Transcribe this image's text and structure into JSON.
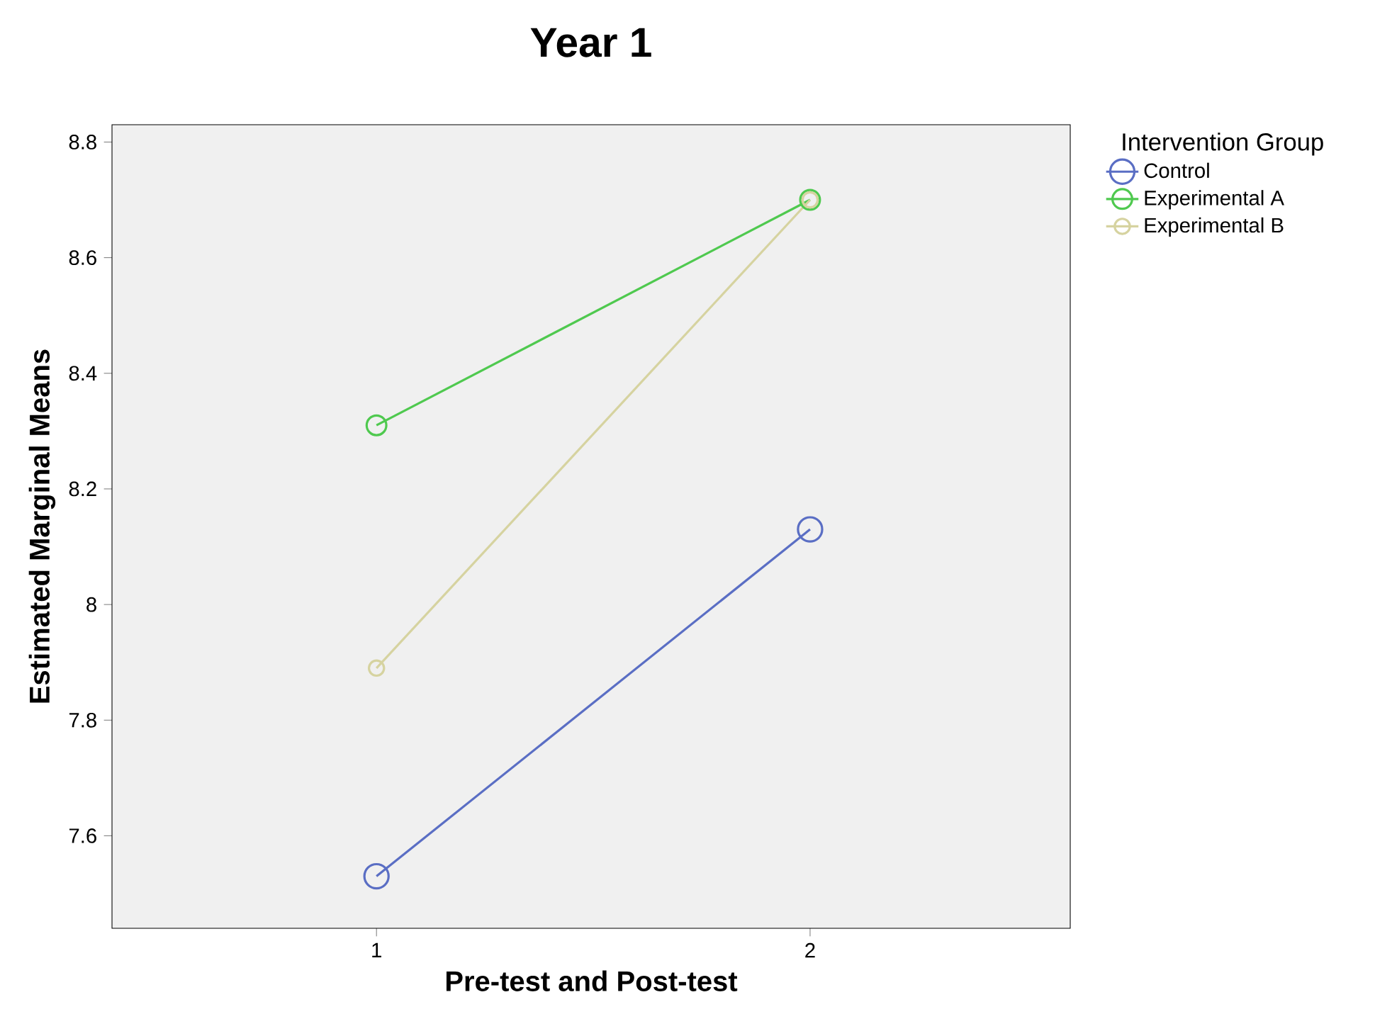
{
  "chart_data": {
    "type": "line",
    "title": "Year 1",
    "xlabel": "Pre-test and Post-test",
    "ylabel": "Estimated Marginal Means",
    "legend_title": "Intervention Group",
    "x": [
      1,
      2
    ],
    "series": [
      {
        "name": "Control",
        "color": "#5a6ec4",
        "values": [
          7.53,
          8.13
        ]
      },
      {
        "name": "Experimental A",
        "color": "#4fc94f",
        "values": [
          8.31,
          8.7
        ]
      },
      {
        "name": "Experimental B",
        "color": "#d6d3a0",
        "values": [
          7.89,
          8.7
        ]
      }
    ],
    "xlim": [
      0.39,
      2.6
    ],
    "ylim": [
      7.44,
      8.83
    ],
    "xticks": [
      1,
      2
    ],
    "yticks": [
      7.6,
      7.8,
      8,
      8.2,
      8.4,
      8.6,
      8.8
    ],
    "legend": "right",
    "marker": "circle",
    "line_style": "solid",
    "grid": false
  }
}
